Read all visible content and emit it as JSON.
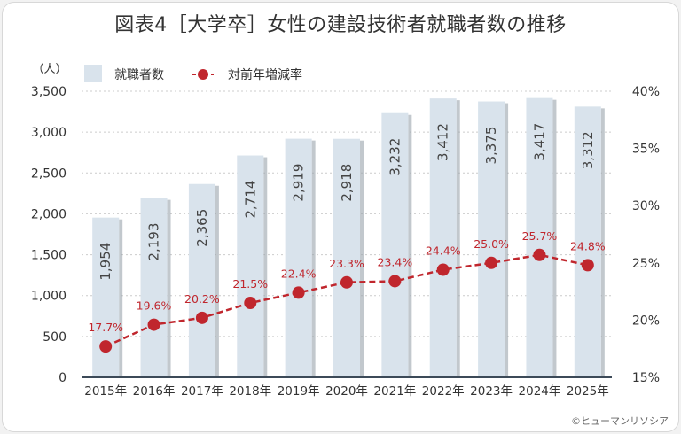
{
  "title": "図表4［大学卒］女性の建設技術者就職者数の推移",
  "credit": "©ヒューマンリソシア",
  "chart_data": {
    "type": "bar",
    "title": "図表4［大学卒］女性の建設技術者就職者数の推移",
    "categories": [
      "2015年",
      "2016年",
      "2017年",
      "2018年",
      "2019年",
      "2020年",
      "2021年",
      "2022年",
      "2023年",
      "2024年",
      "2025年"
    ],
    "left_axis": {
      "unit_label": "（人）",
      "ylim": [
        0,
        3500
      ],
      "ticks": [
        "0",
        "500",
        "1,000",
        "1,500",
        "2,000",
        "2,500",
        "3,000",
        "3,500"
      ]
    },
    "right_axis": {
      "ylim": [
        15,
        40
      ],
      "ticks": [
        "15%",
        "20%",
        "25%",
        "30%",
        "35%",
        "40%"
      ]
    },
    "grid": true,
    "legend_position": "top-left",
    "series": [
      {
        "name": "就職者数",
        "type": "bar",
        "axis": "left",
        "color": "#d9e3ec",
        "values": [
          1954,
          2193,
          2365,
          2714,
          2919,
          2918,
          3232,
          3412,
          3375,
          3417,
          3312
        ],
        "labels": [
          "1,954",
          "2,193",
          "2,365",
          "2,714",
          "2,919",
          "2,918",
          "3,232",
          "3,412",
          "3,375",
          "3,417",
          "3,312"
        ]
      },
      {
        "name": "対前年増減率",
        "type": "line",
        "axis": "right",
        "color": "#c0262d",
        "values": [
          17.7,
          19.6,
          20.2,
          21.5,
          22.4,
          23.3,
          23.4,
          24.4,
          25.0,
          25.7,
          24.8
        ],
        "labels": [
          "17.7%",
          "19.6%",
          "20.2%",
          "21.5%",
          "22.4%",
          "23.3%",
          "23.4%",
          "24.4%",
          "25.0%",
          "25.7%",
          "24.8%"
        ]
      }
    ]
  }
}
